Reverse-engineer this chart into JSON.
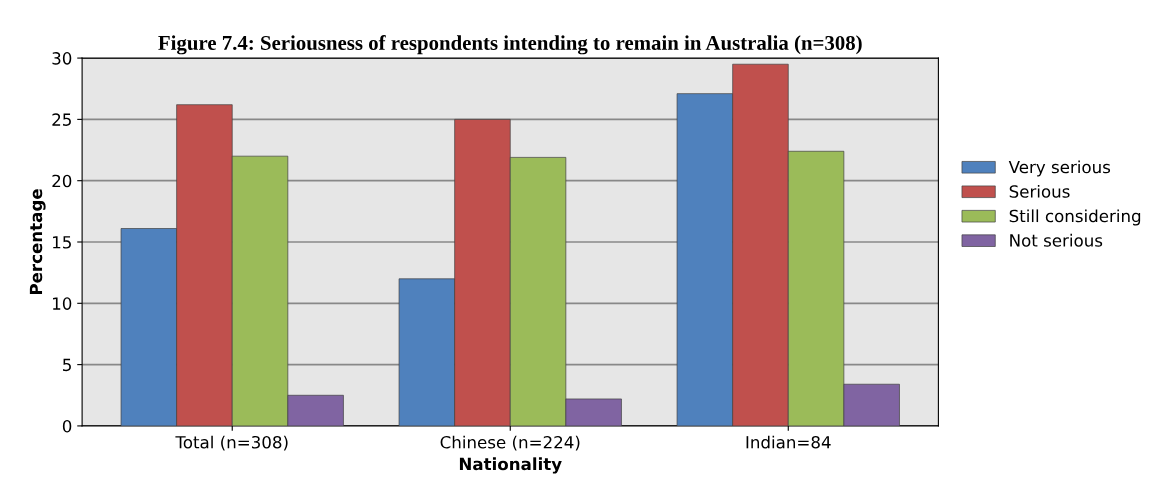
{
  "chart_data": {
    "type": "bar",
    "title": "Figure 7.4: Seriousness of respondents intending to remain in Australia (n=308)",
    "xlabel": "Nationality",
    "ylabel": "Percentage",
    "categories": [
      "Total (n=308)",
      "Chinese (n=224)",
      "Indian=84"
    ],
    "series": [
      {
        "name": "Very serious",
        "color": "#4f81bd",
        "values": [
          16.1,
          12.0,
          27.1
        ]
      },
      {
        "name": "Serious",
        "color": "#c0504d",
        "values": [
          26.2,
          25.0,
          29.5
        ]
      },
      {
        "name": "Still considering",
        "color": "#9bbb59",
        "values": [
          22.0,
          21.9,
          22.4
        ]
      },
      {
        "name": "Not serious",
        "color": "#8064a2",
        "values": [
          2.5,
          2.2,
          3.4
        ]
      }
    ],
    "ylim": [
      0,
      30
    ],
    "yticks": [
      0,
      5,
      10,
      15,
      20,
      25,
      30
    ],
    "grid": "y",
    "legend": "right"
  }
}
